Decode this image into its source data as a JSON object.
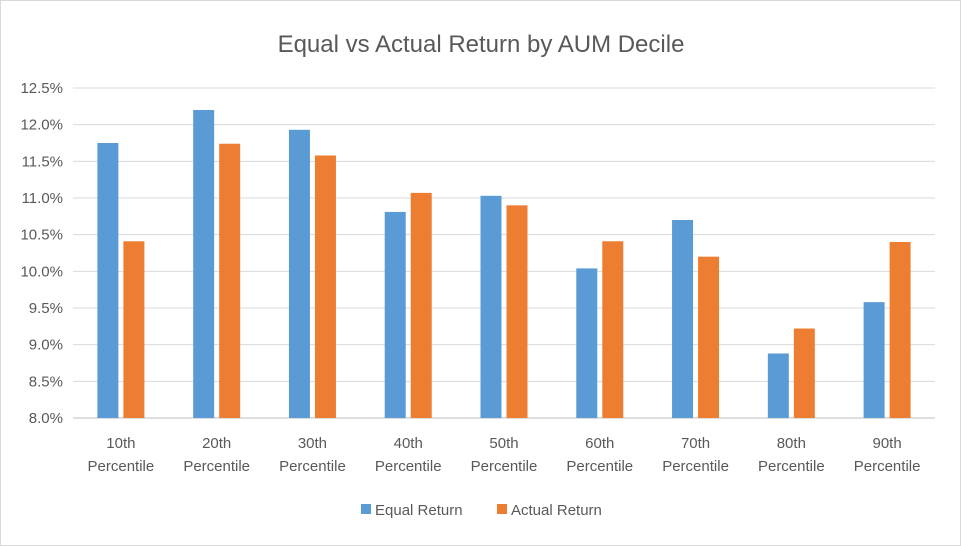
{
  "chart_data": {
    "type": "bar",
    "title": "Equal vs Actual Return by AUM Decile",
    "xlabel": "",
    "ylabel": "",
    "categories": [
      [
        "10th",
        "Percentile"
      ],
      [
        "20th",
        "Percentile"
      ],
      [
        "30th",
        "Percentile"
      ],
      [
        "40th",
        "Percentile"
      ],
      [
        "50th",
        "Percentile"
      ],
      [
        "60th",
        "Percentile"
      ],
      [
        "70th",
        "Percentile"
      ],
      [
        "80th",
        "Percentile"
      ],
      [
        "90th",
        "Percentile"
      ]
    ],
    "series": [
      {
        "name": "Equal Return",
        "color": "#5b9bd5",
        "values": [
          11.75,
          12.2,
          11.93,
          10.81,
          11.03,
          10.04,
          10.7,
          8.88,
          9.58
        ]
      },
      {
        "name": "Actual Return",
        "color": "#ed7d31",
        "values": [
          10.41,
          11.74,
          11.58,
          11.07,
          10.9,
          10.41,
          10.2,
          9.22,
          10.4
        ]
      }
    ],
    "ylim": [
      8.0,
      12.5
    ],
    "yticks": [
      "8.0%",
      "8.5%",
      "9.0%",
      "9.5%",
      "10.0%",
      "10.5%",
      "11.0%",
      "11.5%",
      "12.0%",
      "12.5%"
    ],
    "grid": true,
    "legend_position": "bottom"
  }
}
